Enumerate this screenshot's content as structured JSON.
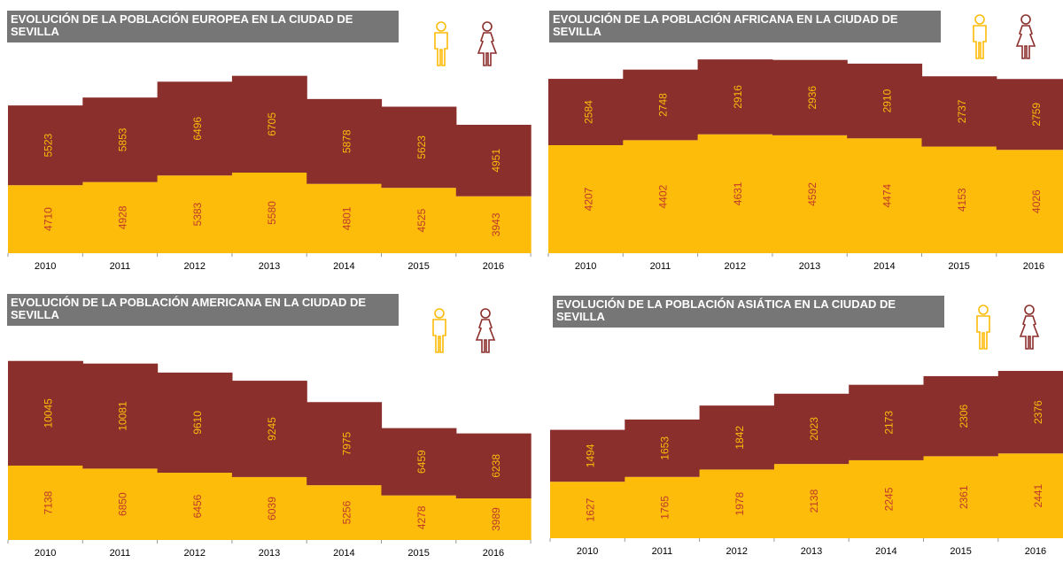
{
  "colors": {
    "male": "#FDBB0A",
    "female": "#8B2F2C",
    "title_bg": "#767676",
    "label": "#c0392b"
  },
  "icons": {
    "male": "man-icon",
    "female": "woman-icon"
  },
  "chart_data": [
    {
      "type": "bar",
      "stacked": true,
      "title": "EVOLUCIÓN DE LA POBLACIÓN EUROPEA EN LA CIUDAD DE SEVILLA",
      "categories": [
        "2010",
        "2011",
        "2012",
        "2013",
        "2014",
        "2015",
        "2016"
      ],
      "series": [
        {
          "key": "male",
          "values": [
            4710,
            4928,
            5383,
            5580,
            4801,
            4525,
            3943
          ]
        },
        {
          "key": "female",
          "values": [
            5523,
            5853,
            6496,
            6705,
            5878,
            5623,
            4951
          ]
        }
      ]
    },
    {
      "type": "bar",
      "stacked": true,
      "title": "EVOLUCIÓN DE LA POBLACIÓN AFRICANA EN LA CIUDAD DE SEVILLA",
      "categories": [
        "2010",
        "2011",
        "2012",
        "2013",
        "2014",
        "2015",
        "2016"
      ],
      "series": [
        {
          "key": "male",
          "values": [
            4207,
            4402,
            4631,
            4592,
            4474,
            4153,
            4026
          ]
        },
        {
          "key": "female",
          "values": [
            2584,
            2748,
            2916,
            2936,
            2910,
            2737,
            2759
          ]
        }
      ]
    },
    {
      "type": "bar",
      "stacked": true,
      "title": "EVOLUCIÓN DE LA POBLACIÓN AMERICANA EN LA CIUDAD DE SEVILLA",
      "categories": [
        "2010",
        "2011",
        "2012",
        "2013",
        "2014",
        "2015",
        "2016"
      ],
      "series": [
        {
          "key": "male",
          "values": [
            7138,
            6850,
            6456,
            6039,
            5256,
            4278,
            3989
          ]
        },
        {
          "key": "female",
          "values": [
            10045,
            10081,
            9610,
            9245,
            7975,
            6459,
            6238
          ]
        }
      ]
    },
    {
      "type": "bar",
      "stacked": true,
      "title": "EVOLUCIÓN DE LA POBLACIÓN ASIÁTICA EN LA CIUDAD DE SEVILLA",
      "categories": [
        "2010",
        "2011",
        "2012",
        "2013",
        "2014",
        "2015",
        "2016"
      ],
      "series": [
        {
          "key": "male",
          "values": [
            1627,
            1765,
            1978,
            2138,
            2245,
            2361,
            2441
          ]
        },
        {
          "key": "female",
          "values": [
            1494,
            1653,
            1842,
            2023,
            2173,
            2306,
            2376
          ]
        }
      ]
    }
  ]
}
